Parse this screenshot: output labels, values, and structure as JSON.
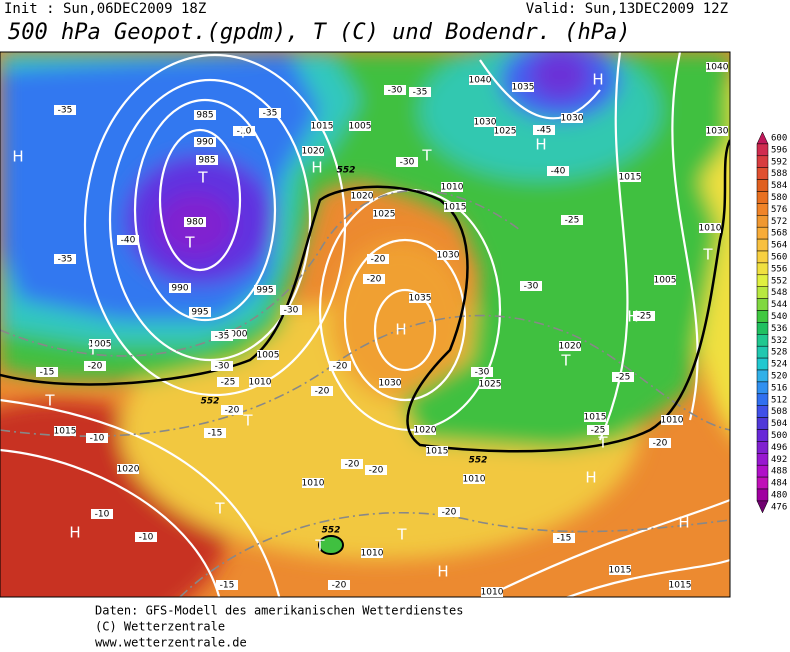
{
  "header": {
    "init": "Init : Sun,06DEC2009 18Z",
    "valid": "Valid: Sun,13DEC2009 12Z",
    "title": "500 hPa Geopot.(gpdm), T (C) und Bodendr. (hPa)"
  },
  "colorbar": {
    "levels": [
      600,
      596,
      592,
      588,
      584,
      580,
      576,
      572,
      568,
      564,
      560,
      556,
      552,
      548,
      544,
      540,
      536,
      532,
      528,
      524,
      520,
      516,
      512,
      508,
      504,
      500,
      496,
      492,
      488,
      484,
      480,
      476
    ],
    "colors": [
      "#c0185a",
      "#d02c50",
      "#d83c40",
      "#e05030",
      "#e06020",
      "#e87020",
      "#f08428",
      "#f09830",
      "#f8ac38",
      "#f8c040",
      "#f8d040",
      "#f0e040",
      "#e0f040",
      "#b8e840",
      "#80d840",
      "#40c840",
      "#20c060",
      "#20c890",
      "#20c8b0",
      "#20c8d0",
      "#30b0e8",
      "#3090f0",
      "#3070f0",
      "#4050e8",
      "#5038d8",
      "#6828d8",
      "#8020d0",
      "#9818d0",
      "#b010c8",
      "#c010b8",
      "#a000a0",
      "#700070"
    ]
  },
  "map": {
    "pressure_labels": [
      "985",
      "990",
      "985",
      "980",
      "990",
      "995",
      "995",
      "1000",
      "1005",
      "1010",
      "1005",
      "1015",
      "1020",
      "1010",
      "1010",
      "1010",
      "1015",
      "1015",
      "1015",
      "1010",
      "1020",
      "1025",
      "1030",
      "1035",
      "1030",
      "1025",
      "1020",
      "1015",
      "1010",
      "1005",
      "1010",
      "1015",
      "1030",
      "1040",
      "1030",
      "1025",
      "1030",
      "1035",
      "1040",
      "1015",
      "1005",
      "1020",
      "1020",
      "1015",
      "1010"
    ],
    "temperature_labels": [
      "-35",
      "-35",
      "-35",
      "-40",
      "-35",
      "-30",
      "-25",
      "-20",
      "-15",
      "-10",
      "-10",
      "-10",
      "-15",
      "-20",
      "-30",
      "-20",
      "-20",
      "-20",
      "-20",
      "-30",
      "-30",
      "-25",
      "-45",
      "-40",
      "-35",
      "-30",
      "-30",
      "-25",
      "-25",
      "-25",
      "-20",
      "-20",
      "-20",
      "-20",
      "-15",
      "-20",
      "-15",
      "-10"
    ],
    "pressure_centers": [
      "H",
      "H",
      "H",
      "H",
      "H",
      "H",
      "H",
      "H",
      "H",
      "H",
      "T",
      "T",
      "T",
      "T",
      "T",
      "T",
      "T",
      "T",
      "T",
      "T",
      "T",
      "T",
      "T"
    ],
    "height_labels": [
      "552",
      "552",
      "552",
      "552"
    ]
  },
  "footer": {
    "line1": "Daten: GFS-Modell des amerikanischen Wetterdienstes",
    "line2": "(C) Wetterzentrale",
    "line3": "www.wetterzentrale.de"
  }
}
